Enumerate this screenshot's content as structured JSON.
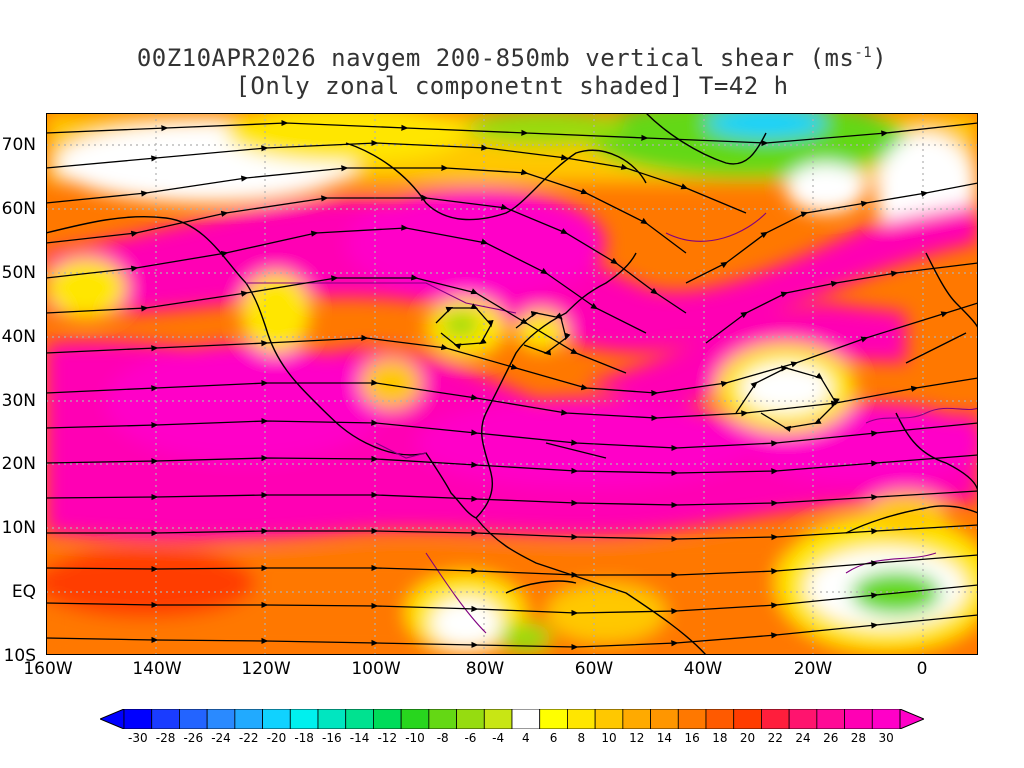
{
  "title": {
    "line1_prefix": "00Z10APR2026 navgem 200-850mb vertical shear (ms",
    "line1_sup": "-1",
    "line1_suffix": ")",
    "line2": "[Only zonal componetnt shaded] T=42 h"
  },
  "map": {
    "lat_range": [
      -10,
      75
    ],
    "lon_range": [
      -160,
      10
    ],
    "lat_labels": [
      "70N",
      "60N",
      "50N",
      "40N",
      "30N",
      "20N",
      "10N",
      "EQ",
      "10S"
    ],
    "lon_labels": [
      "160W",
      "140W",
      "120W",
      "100W",
      "80W",
      "60W",
      "40W",
      "20W",
      "0"
    ],
    "shading_variable": "zonal component of 200-850mb vertical shear",
    "overlay": "streamlines",
    "coastline_color": "#000000",
    "border_color": "#800080"
  },
  "colorbar": {
    "labels": [
      "-30",
      "-28",
      "-26",
      "-24",
      "-22",
      "-20",
      "-18",
      "-16",
      "-14",
      "-12",
      "-10",
      "-8",
      "-6",
      "-4",
      "4",
      "6",
      "8",
      "10",
      "12",
      "14",
      "16",
      "18",
      "20",
      "22",
      "24",
      "26",
      "28",
      "30"
    ],
    "colors": [
      "#0000ff",
      "#1a3cff",
      "#2364ff",
      "#2a8aff",
      "#21aaff",
      "#10d2ff",
      "#00f0ee",
      "#00e6c0",
      "#00e290",
      "#00dc5a",
      "#28d61e",
      "#64d814",
      "#96dc10",
      "#c8e614",
      "#ffffff",
      "#ffff00",
      "#ffe600",
      "#ffc800",
      "#ffaa00",
      "#ff9600",
      "#ff7800",
      "#ff5a00",
      "#ff3c00",
      "#ff1e3c",
      "#ff146e",
      "#ff0a96",
      "#ff00b4",
      "#ff00c8"
    ]
  }
}
